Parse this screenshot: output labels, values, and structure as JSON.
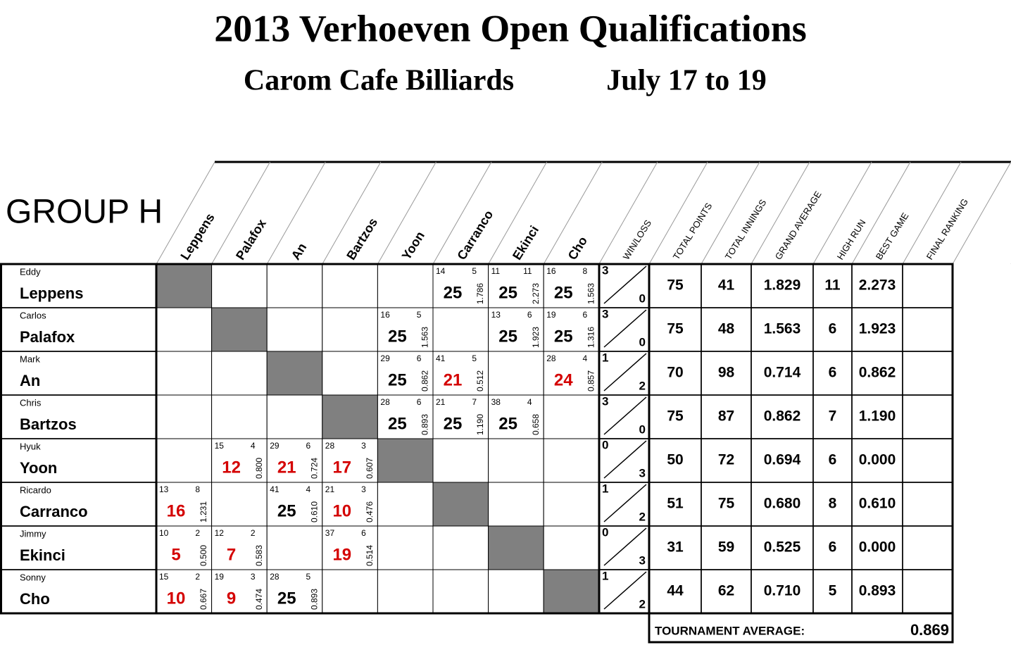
{
  "header": {
    "title": "2013 Verhoeven Open Qualifications",
    "venue": "Carom Cafe Billiards",
    "dates": "July 17 to 19"
  },
  "group": "GROUP H",
  "columns": {
    "opponents": [
      "Leppens",
      "Palafox",
      "An",
      "Bartzos",
      "Yoon",
      "Carranco",
      "Ekinci",
      "Cho"
    ],
    "stats": [
      "WIN/LOSS",
      "TOTAL POINTS",
      "TOTAL INNINGS",
      "GRAND AVERAGE",
      "HIGH RUN",
      "BEST GAME",
      "FINAL RANKING"
    ]
  },
  "rows": [
    {
      "first": "Eddy",
      "last": "Leppens",
      "games": [
        null,
        null,
        null,
        null,
        null,
        {
          "innings": 14,
          "run": 5,
          "score": 25,
          "average": "1.786",
          "color": "#000000"
        },
        {
          "innings": 11,
          "run": 11,
          "score": 25,
          "average": "2.273",
          "color": "#000000"
        },
        {
          "innings": 16,
          "run": 8,
          "score": 25,
          "average": "1.563",
          "color": "#000000"
        }
      ],
      "wins": 3,
      "losses": 0,
      "total_points": 75,
      "total_innings": 41,
      "grand_average": "1.829",
      "high_run": 11,
      "best_game": "2.273"
    },
    {
      "first": "Carlos",
      "last": "Palafox",
      "games": [
        null,
        null,
        null,
        null,
        {
          "innings": 16,
          "run": 5,
          "score": 25,
          "average": "1.563",
          "color": "#000000"
        },
        null,
        {
          "innings": 13,
          "run": 6,
          "score": 25,
          "average": "1.923",
          "color": "#000000"
        },
        {
          "innings": 19,
          "run": 6,
          "score": 25,
          "average": "1.316",
          "color": "#000000"
        }
      ],
      "wins": 3,
      "losses": 0,
      "total_points": 75,
      "total_innings": 48,
      "grand_average": "1.563",
      "high_run": 6,
      "best_game": "1.923"
    },
    {
      "first": "Mark",
      "last": "An",
      "games": [
        null,
        null,
        null,
        null,
        {
          "innings": 29,
          "run": 6,
          "score": 25,
          "average": "0.862",
          "color": "#000000"
        },
        {
          "innings": 41,
          "run": 5,
          "score": 21,
          "average": "0.512",
          "color": "#d40000"
        },
        null,
        {
          "innings": 28,
          "run": 4,
          "score": 24,
          "average": "0.857",
          "color": "#d40000"
        }
      ],
      "wins": 1,
      "losses": 2,
      "total_points": 70,
      "total_innings": 98,
      "grand_average": "0.714",
      "high_run": 6,
      "best_game": "0.862"
    },
    {
      "first": "Chris",
      "last": "Bartzos",
      "games": [
        null,
        null,
        null,
        null,
        {
          "innings": 28,
          "run": 6,
          "score": 25,
          "average": "0.893",
          "color": "#000000"
        },
        {
          "innings": 21,
          "run": 7,
          "score": 25,
          "average": "1.190",
          "color": "#000000"
        },
        {
          "innings": 38,
          "run": 4,
          "score": 25,
          "average": "0.658",
          "color": "#000000"
        },
        null
      ],
      "wins": 3,
      "losses": 0,
      "total_points": 75,
      "total_innings": 87,
      "grand_average": "0.862",
      "high_run": 7,
      "best_game": "1.190"
    },
    {
      "first": "Hyuk",
      "last": "Yoon",
      "games": [
        null,
        {
          "innings": 15,
          "run": 4,
          "score": 12,
          "average": "0.800",
          "color": "#d40000"
        },
        {
          "innings": 29,
          "run": 6,
          "score": 21,
          "average": "0.724",
          "color": "#d40000"
        },
        {
          "innings": 28,
          "run": 3,
          "score": 17,
          "average": "0.607",
          "color": "#d40000"
        },
        null,
        null,
        null,
        null
      ],
      "wins": 0,
      "losses": 3,
      "total_points": 50,
      "total_innings": 72,
      "grand_average": "0.694",
      "high_run": 6,
      "best_game": "0.000"
    },
    {
      "first": "Ricardo",
      "last": "Carranco",
      "games": [
        {
          "innings": 13,
          "run": 8,
          "score": 16,
          "average": "1.231",
          "color": "#d40000"
        },
        null,
        {
          "innings": 41,
          "run": 4,
          "score": 25,
          "average": "0.610",
          "color": "#000000"
        },
        {
          "innings": 21,
          "run": 3,
          "score": 10,
          "average": "0.476",
          "color": "#d40000"
        },
        null,
        null,
        null,
        null
      ],
      "wins": 1,
      "losses": 2,
      "total_points": 51,
      "total_innings": 75,
      "grand_average": "0.680",
      "high_run": 8,
      "best_game": "0.610"
    },
    {
      "first": "Jimmy",
      "last": "Ekinci",
      "games": [
        {
          "innings": 10,
          "run": 2,
          "score": 5,
          "average": "0.500",
          "color": "#d40000"
        },
        {
          "innings": 12,
          "run": 2,
          "score": 7,
          "average": "0.583",
          "color": "#d40000"
        },
        null,
        {
          "innings": 37,
          "run": 6,
          "score": 19,
          "average": "0.514",
          "color": "#d40000"
        },
        null,
        null,
        null,
        null
      ],
      "wins": 0,
      "losses": 3,
      "total_points": 31,
      "total_innings": 59,
      "grand_average": "0.525",
      "high_run": 6,
      "best_game": "0.000"
    },
    {
      "first": "Sonny",
      "last": "Cho",
      "games": [
        {
          "innings": 15,
          "run": 2,
          "score": 10,
          "average": "0.667",
          "color": "#d40000"
        },
        {
          "innings": 19,
          "run": 3,
          "score": 9,
          "average": "0.474",
          "color": "#d40000"
        },
        {
          "innings": 28,
          "run": 5,
          "score": 25,
          "average": "0.893",
          "color": "#000000"
        },
        null,
        null,
        null,
        null,
        null
      ],
      "wins": 1,
      "losses": 2,
      "total_points": 44,
      "total_innings": 62,
      "grand_average": "0.710",
      "high_run": 5,
      "best_game": "0.893"
    }
  ],
  "footer": {
    "label": "TOURNAMENT AVERAGE:",
    "value": "0.869"
  }
}
